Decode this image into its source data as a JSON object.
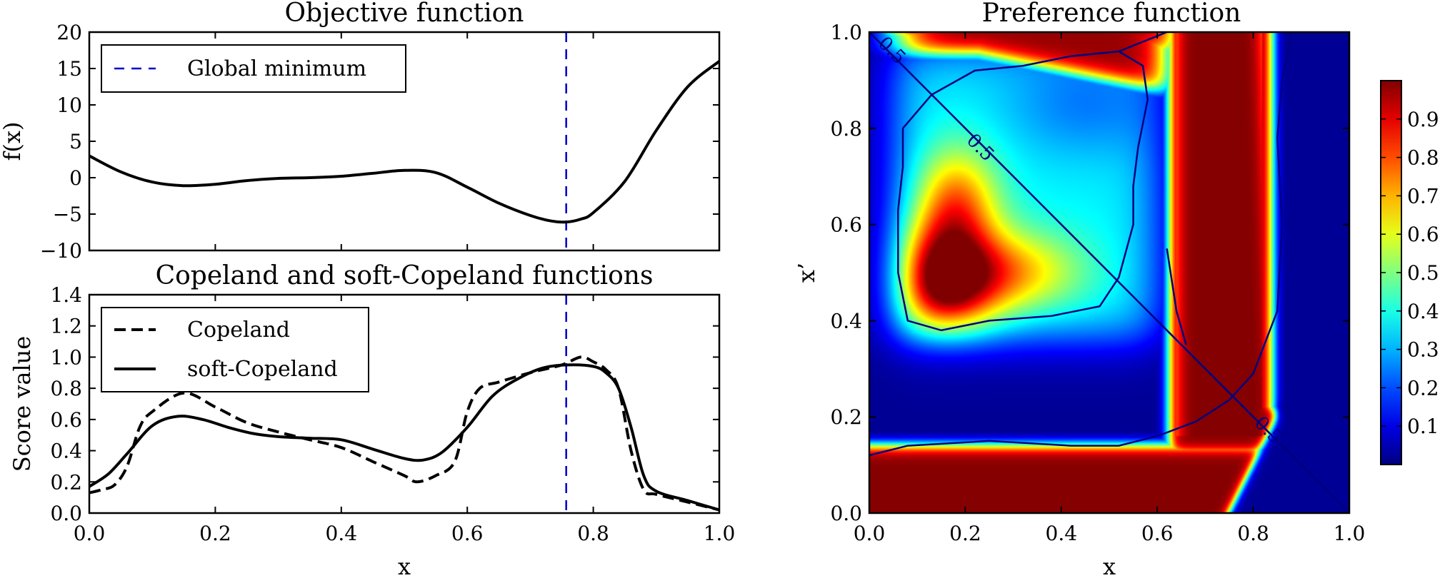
{
  "chart_data": [
    {
      "type": "line",
      "title": "Objective function",
      "xlabel": "",
      "ylabel": "f(x)",
      "xlim": [
        0.0,
        1.0
      ],
      "ylim": [
        -10,
        20
      ],
      "xticks": [],
      "yticks": [
        "20",
        "15",
        "10",
        "5",
        "0",
        "−5",
        "−10"
      ],
      "legend": {
        "placement": "top-left",
        "entries": [
          "Global minimum"
        ]
      },
      "series": [
        {
          "name": "",
          "style": "solid",
          "color": "#000000",
          "x": [
            0.0,
            0.05,
            0.1,
            0.15,
            0.2,
            0.25,
            0.3,
            0.35,
            0.4,
            0.45,
            0.5,
            0.55,
            0.6,
            0.65,
            0.7,
            0.73,
            0.755,
            0.78,
            0.8,
            0.85,
            0.9,
            0.95,
            1.0
          ],
          "y": [
            3.0,
            0.8,
            -0.6,
            -1.1,
            -0.9,
            -0.4,
            -0.1,
            0.0,
            0.2,
            0.6,
            1.0,
            0.7,
            -1.3,
            -3.5,
            -5.2,
            -5.9,
            -6.1,
            -5.7,
            -4.8,
            -0.5,
            6.5,
            12.5,
            16.0
          ]
        }
      ],
      "vlines": [
        {
          "x": 0.757,
          "name": "Global minimum",
          "style": "dashed",
          "color": "#0000cc"
        }
      ]
    },
    {
      "type": "line",
      "title": "Copeland and soft-Copeland functions",
      "xlabel": "x",
      "ylabel": "Score value",
      "xlim": [
        0.0,
        1.0
      ],
      "ylim": [
        0.0,
        1.4
      ],
      "xticks": [
        "0.0",
        "0.2",
        "0.4",
        "0.6",
        "0.8",
        "1.0"
      ],
      "yticks": [
        "1.4",
        "1.2",
        "1.0",
        "0.8",
        "0.6",
        "0.4",
        "0.2",
        "0.0"
      ],
      "legend": {
        "placement": "top-left",
        "entries": [
          "Copeland",
          "soft-Copeland"
        ]
      },
      "series": [
        {
          "name": "Copeland",
          "style": "dashed",
          "color": "#000000",
          "x": [
            0.0,
            0.02,
            0.04,
            0.06,
            0.08,
            0.1,
            0.15,
            0.2,
            0.25,
            0.3,
            0.35,
            0.4,
            0.45,
            0.5,
            0.52,
            0.55,
            0.58,
            0.6,
            0.62,
            0.65,
            0.7,
            0.75,
            0.78,
            0.8,
            0.82,
            0.84,
            0.86,
            0.88,
            0.9,
            0.95,
            1.0
          ],
          "y": [
            0.13,
            0.15,
            0.18,
            0.3,
            0.55,
            0.65,
            0.77,
            0.68,
            0.58,
            0.52,
            0.47,
            0.42,
            0.33,
            0.24,
            0.2,
            0.24,
            0.33,
            0.65,
            0.8,
            0.84,
            0.9,
            0.95,
            1.0,
            0.97,
            0.92,
            0.8,
            0.4,
            0.15,
            0.12,
            0.07,
            0.02
          ]
        },
        {
          "name": "soft-Copeland",
          "style": "solid",
          "color": "#000000",
          "x": [
            0.0,
            0.03,
            0.06,
            0.1,
            0.14,
            0.18,
            0.22,
            0.26,
            0.3,
            0.35,
            0.4,
            0.45,
            0.5,
            0.53,
            0.56,
            0.6,
            0.64,
            0.68,
            0.72,
            0.76,
            0.8,
            0.82,
            0.84,
            0.86,
            0.88,
            0.9,
            0.95,
            1.0
          ],
          "y": [
            0.17,
            0.25,
            0.38,
            0.56,
            0.62,
            0.6,
            0.55,
            0.51,
            0.49,
            0.48,
            0.47,
            0.41,
            0.35,
            0.34,
            0.39,
            0.55,
            0.75,
            0.86,
            0.93,
            0.95,
            0.94,
            0.9,
            0.8,
            0.55,
            0.24,
            0.14,
            0.08,
            0.02
          ]
        }
      ],
      "vlines": [
        {
          "x": 0.757,
          "name": "",
          "style": "dashed",
          "color": "#0000cc"
        }
      ]
    },
    {
      "type": "heatmap",
      "title": "Preference function",
      "xlabel": "x",
      "ylabel": "x’",
      "xlim": [
        0.0,
        1.0
      ],
      "ylim": [
        0.0,
        1.0
      ],
      "xticks": [
        "0.0",
        "0.2",
        "0.4",
        "0.6",
        "0.8",
        "1.0"
      ],
      "yticks": [
        "1.0",
        "0.8",
        "0.6",
        "0.4",
        "0.2",
        "0.0"
      ],
      "colormap": "jet",
      "colorbar": {
        "range": [
          0.0,
          1.0
        ],
        "ticks": [
          "0.9",
          "0.8",
          "0.7",
          "0.6",
          "0.5",
          "0.4",
          "0.3",
          "0.2",
          "0.1"
        ]
      },
      "contour": {
        "level": 0.5,
        "color": "#000080",
        "labels": [
          "0.5",
          "0.5",
          "0.5"
        ]
      }
    }
  ]
}
